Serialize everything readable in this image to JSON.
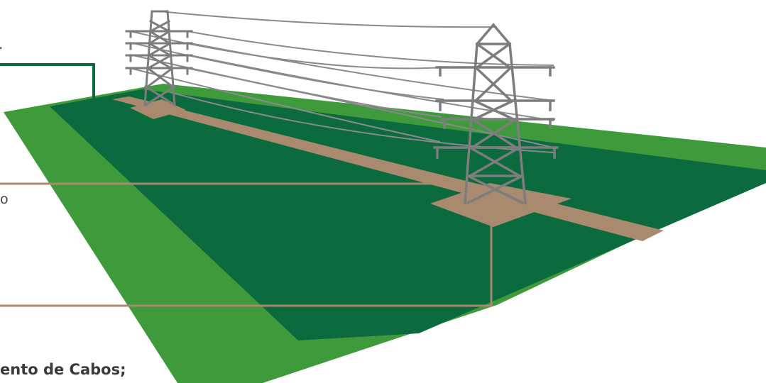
{
  "labels": {
    "top_fragment": ".",
    "mid_fragment": "o",
    "bottom_fragment": "ento de Cabos;"
  },
  "colors": {
    "light_green": "#3f9a3c",
    "dark_green": "#0b6a3e",
    "mid_green": "#2f8a3a",
    "right_of_way": "#a98a6e",
    "tower_gray": "#7d7d7d",
    "cable_gray": "#8a8a8a",
    "callout_green": "#0b6a3e",
    "callout_tan": "#a98a6e"
  },
  "icons": {
    "tower_near": "transmission-tower-icon",
    "tower_far": "transmission-tower-icon"
  }
}
